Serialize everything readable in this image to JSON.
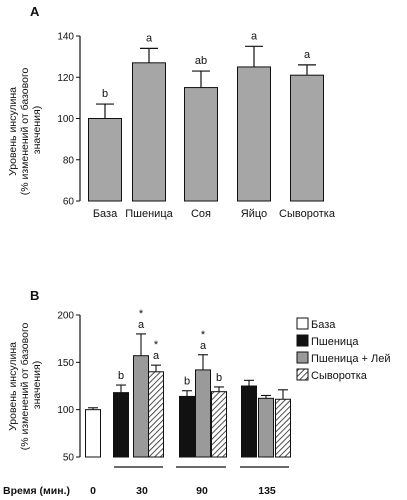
{
  "chart_data": [
    {
      "type": "bar",
      "panel_label": "A",
      "ylabel_lines": [
        "Уровень инсулина",
        "(% изменений от базового",
        "значения)"
      ],
      "ylim": [
        60,
        140
      ],
      "yticks": [
        60,
        80,
        100,
        120,
        140
      ],
      "categories": [
        "База",
        "Пшеница",
        "Соя",
        "Яйцо",
        "Сыворотка"
      ],
      "values": [
        100,
        127,
        115,
        125,
        121
      ],
      "errors": [
        7,
        7,
        8,
        10,
        5
      ],
      "significance_letters": [
        "b",
        "a",
        "ab",
        "a",
        "a"
      ],
      "bar_color": "#a6a6a6"
    },
    {
      "type": "bar",
      "panel_label": "B",
      "ylabel_lines": [
        "Уровень инсулина",
        "(% изменений от базового",
        "значения)"
      ],
      "ylim": [
        50,
        200
      ],
      "yticks": [
        50,
        100,
        150,
        200
      ],
      "xlabel": "Время (мин.)",
      "groups": [
        {
          "time": "0",
          "bars": [
            {
              "series": "База",
              "value": 100,
              "error": 2,
              "letter": "",
              "star": false
            }
          ]
        },
        {
          "time": "30",
          "bars": [
            {
              "series": "Пшеница",
              "value": 118,
              "error": 8,
              "letter": "b",
              "star": false
            },
            {
              "series": "Пшеница + Лей",
              "value": 157,
              "error": 23,
              "letter": "a",
              "star": true
            },
            {
              "series": "Сыворотка",
              "value": 140,
              "error": 7,
              "letter": "a",
              "star": true
            }
          ]
        },
        {
          "time": "90",
          "bars": [
            {
              "series": "Пшеница",
              "value": 114,
              "error": 6,
              "letter": "b",
              "star": false
            },
            {
              "series": "Пшеница + Лей",
              "value": 142,
              "error": 16,
              "letter": "a",
              "star": true
            },
            {
              "series": "Сыворотка",
              "value": 119,
              "error": 5,
              "letter": "b",
              "star": false
            }
          ]
        },
        {
          "time": "135",
          "bars": [
            {
              "series": "Пшеница",
              "value": 125,
              "error": 6,
              "letter": "",
              "star": false
            },
            {
              "series": "Пшеница + Лей",
              "value": 112,
              "error": 3,
              "letter": "",
              "star": false
            },
            {
              "series": "Сыворотка",
              "value": 111,
              "error": 10,
              "letter": "",
              "star": false
            }
          ]
        }
      ],
      "significance_star": "*",
      "legend": [
        {
          "name": "База",
          "fill": "#ffffff",
          "pattern": "none"
        },
        {
          "name": "Пшеница",
          "fill": "#111111",
          "pattern": "none"
        },
        {
          "name": "Пшеница + Лей",
          "fill": "#9a9a9a",
          "pattern": "none"
        },
        {
          "name": "Сыворотка",
          "fill": "#ffffff",
          "pattern": "hatch"
        }
      ],
      "legend_position": "top-right"
    }
  ]
}
